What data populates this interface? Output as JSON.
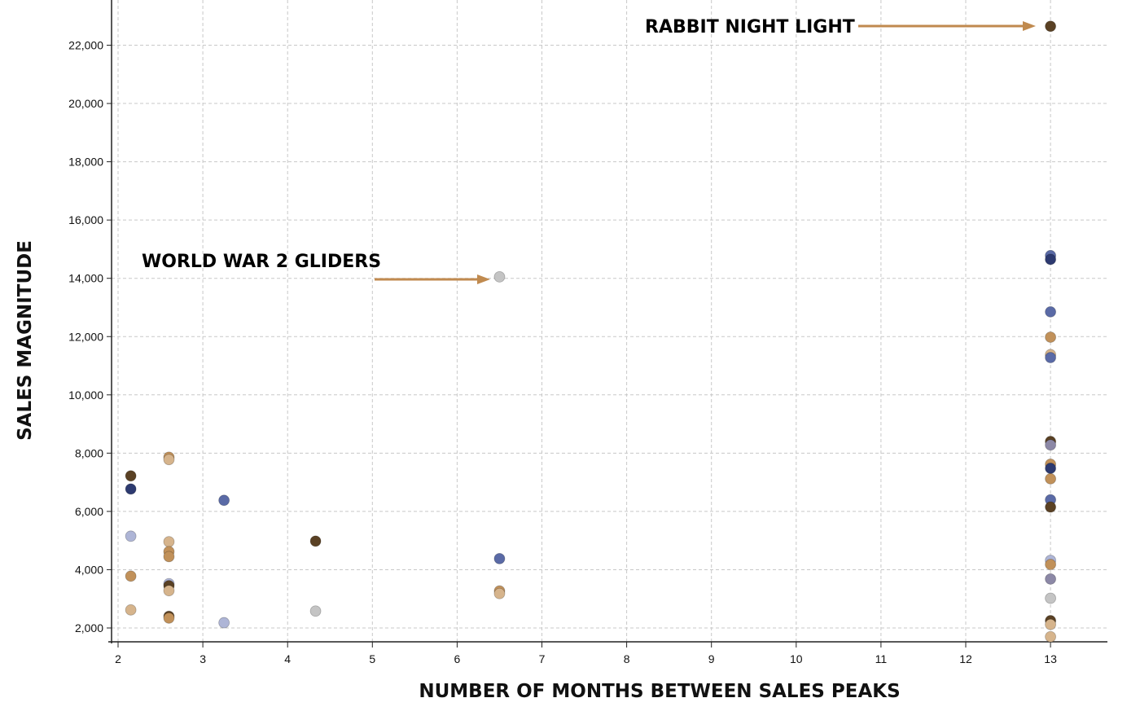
{
  "chart_data": {
    "type": "scatter",
    "xlabel": "NUMBER OF MONTHS BETWEEN SALES PEAKS",
    "ylabel": "SALES MAGNITUDE",
    "xlim": [
      1.95,
      13.65
    ],
    "ylim": [
      1500,
      23300
    ],
    "x_ticks": [
      2,
      3,
      4,
      5,
      6,
      7,
      8,
      9,
      10,
      11,
      12,
      13
    ],
    "x_tick_labels": [
      "2",
      "3",
      "4",
      "5",
      "6",
      "7",
      "8",
      "9",
      "10",
      "11",
      "12",
      "13"
    ],
    "y_ticks": [
      2000,
      4000,
      6000,
      8000,
      10000,
      12000,
      14000,
      16000,
      18000,
      20000,
      22000
    ],
    "y_tick_labels": [
      "2,000",
      "4,000",
      "6,000",
      "8,000",
      "10,000",
      "12,000",
      "14,000",
      "16,000",
      "18,000",
      "20,000",
      "22,000"
    ],
    "grid": true,
    "legend": "none",
    "colors": {
      "blue": "#5a6aa6",
      "navy": "#2d3a70",
      "lightblue": "#aeb5d6",
      "tan": "#c1915a",
      "darkbrown": "#5a4124",
      "lighttan": "#d6b48c",
      "gray": "#c4c4c4",
      "graypurple": "#8c88a6",
      "annotation_text": "#5b6aa8",
      "annotation_arrow": "#c08a4f",
      "grid": "#c8c8c8",
      "axis": "#222222"
    },
    "points": [
      {
        "x": 2.15,
        "y": 7220,
        "color": "darkbrown"
      },
      {
        "x": 2.15,
        "y": 6770,
        "color": "navy"
      },
      {
        "x": 2.15,
        "y": 5150,
        "color": "lightblue"
      },
      {
        "x": 2.15,
        "y": 3780,
        "color": "tan"
      },
      {
        "x": 2.15,
        "y": 2620,
        "color": "lighttan"
      },
      {
        "x": 2.6,
        "y": 7860,
        "color": "tan"
      },
      {
        "x": 2.6,
        "y": 7780,
        "color": "lighttan"
      },
      {
        "x": 2.6,
        "y": 4960,
        "color": "lighttan"
      },
      {
        "x": 2.6,
        "y": 4620,
        "color": "tan"
      },
      {
        "x": 2.6,
        "y": 4450,
        "color": "tan"
      },
      {
        "x": 2.6,
        "y": 3520,
        "color": "lightblue"
      },
      {
        "x": 2.6,
        "y": 3450,
        "color": "darkbrown"
      },
      {
        "x": 2.6,
        "y": 3280,
        "color": "lighttan"
      },
      {
        "x": 2.6,
        "y": 2400,
        "color": "darkbrown"
      },
      {
        "x": 2.6,
        "y": 2340,
        "color": "tan"
      },
      {
        "x": 3.25,
        "y": 6380,
        "color": "blue"
      },
      {
        "x": 3.25,
        "y": 2180,
        "color": "lightblue"
      },
      {
        "x": 4.33,
        "y": 4980,
        "color": "darkbrown"
      },
      {
        "x": 4.33,
        "y": 2580,
        "color": "gray"
      },
      {
        "x": 6.5,
        "y": 14050,
        "color": "gray"
      },
      {
        "x": 6.5,
        "y": 4380,
        "color": "blue"
      },
      {
        "x": 6.5,
        "y": 3270,
        "color": "tan"
      },
      {
        "x": 6.5,
        "y": 3180,
        "color": "lighttan"
      },
      {
        "x": 13,
        "y": 22650,
        "color": "darkbrown"
      },
      {
        "x": 13,
        "y": 14780,
        "color": "blue"
      },
      {
        "x": 13,
        "y": 14650,
        "color": "navy"
      },
      {
        "x": 13,
        "y": 12850,
        "color": "blue"
      },
      {
        "x": 13,
        "y": 11980,
        "color": "tan"
      },
      {
        "x": 13,
        "y": 11380,
        "color": "lighttan"
      },
      {
        "x": 13,
        "y": 11280,
        "color": "blue"
      },
      {
        "x": 13,
        "y": 8400,
        "color": "darkbrown"
      },
      {
        "x": 13,
        "y": 8280,
        "color": "graypurple"
      },
      {
        "x": 13,
        "y": 7620,
        "color": "tan"
      },
      {
        "x": 13,
        "y": 7480,
        "color": "navy"
      },
      {
        "x": 13,
        "y": 7120,
        "color": "tan"
      },
      {
        "x": 13,
        "y": 6400,
        "color": "blue"
      },
      {
        "x": 13,
        "y": 6150,
        "color": "darkbrown"
      },
      {
        "x": 13,
        "y": 4320,
        "color": "lightblue"
      },
      {
        "x": 13,
        "y": 4180,
        "color": "tan"
      },
      {
        "x": 13,
        "y": 3680,
        "color": "graypurple"
      },
      {
        "x": 13,
        "y": 3020,
        "color": "gray"
      },
      {
        "x": 13,
        "y": 2250,
        "color": "darkbrown"
      },
      {
        "x": 13,
        "y": 2120,
        "color": "lighttan"
      },
      {
        "x": 13,
        "y": 1700,
        "color": "lighttan"
      }
    ],
    "annotations": [
      {
        "text": "RABBIT NIGHT LIGHT",
        "x": 13,
        "y": 22650
      },
      {
        "text": "WORLD WAR 2 GLIDERS",
        "x": 6.5,
        "y": 14050
      }
    ]
  }
}
